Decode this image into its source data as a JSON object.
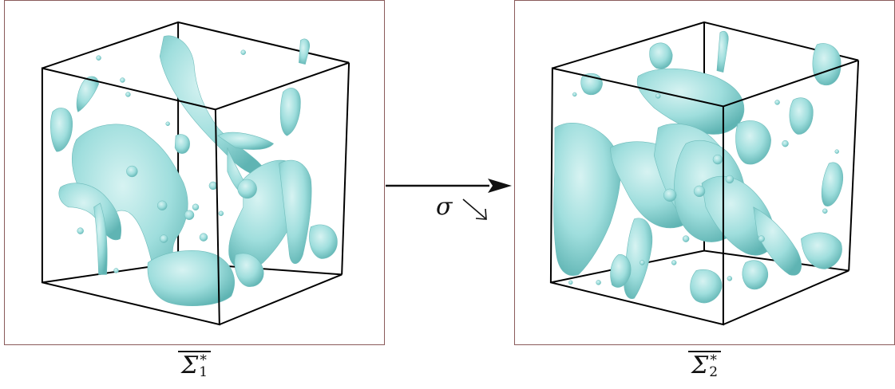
{
  "captions": {
    "left": {
      "symbol": "Σ",
      "sup": "*",
      "sub": "1"
    },
    "right": {
      "symbol": "Σ",
      "sup": "*",
      "sub": "2"
    }
  },
  "arrow": {
    "label": "σ",
    "diagonal_glyph": "↘"
  },
  "colors": {
    "surface": "#9fdedd",
    "surface_shade": "#5fb4b3",
    "surface_highlight": "#d7f3f2",
    "box_edge": "#000000",
    "panel_border": "#8a5a5a"
  }
}
